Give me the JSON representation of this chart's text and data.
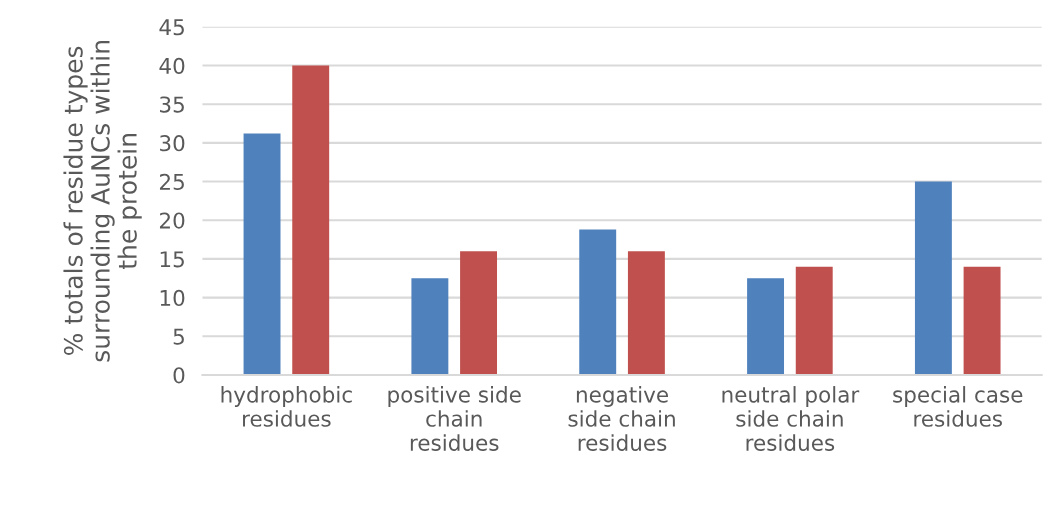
{
  "chart_data": {
    "type": "bar",
    "ylabel": "% totals of residue types\nsurrounding AuNCs within\nthe protein",
    "categories": [
      "hydrophobic\nresidues",
      "positive side\nchain\nresidues",
      "negative\nside chain\nresidues",
      "neutral polar\nside chain\nresidues",
      "special case\nresidues"
    ],
    "series": [
      {
        "color": "#4f81bd",
        "values": [
          31.2,
          12.5,
          18.8,
          12.5,
          25
        ]
      },
      {
        "color": "#c0504d",
        "values": [
          40,
          16,
          16,
          14,
          14
        ]
      }
    ],
    "ylim": [
      0,
      45
    ],
    "yticks": [
      0,
      5,
      10,
      15,
      20,
      25,
      30,
      35,
      40,
      45
    ],
    "grid": "y",
    "legend": false
  }
}
